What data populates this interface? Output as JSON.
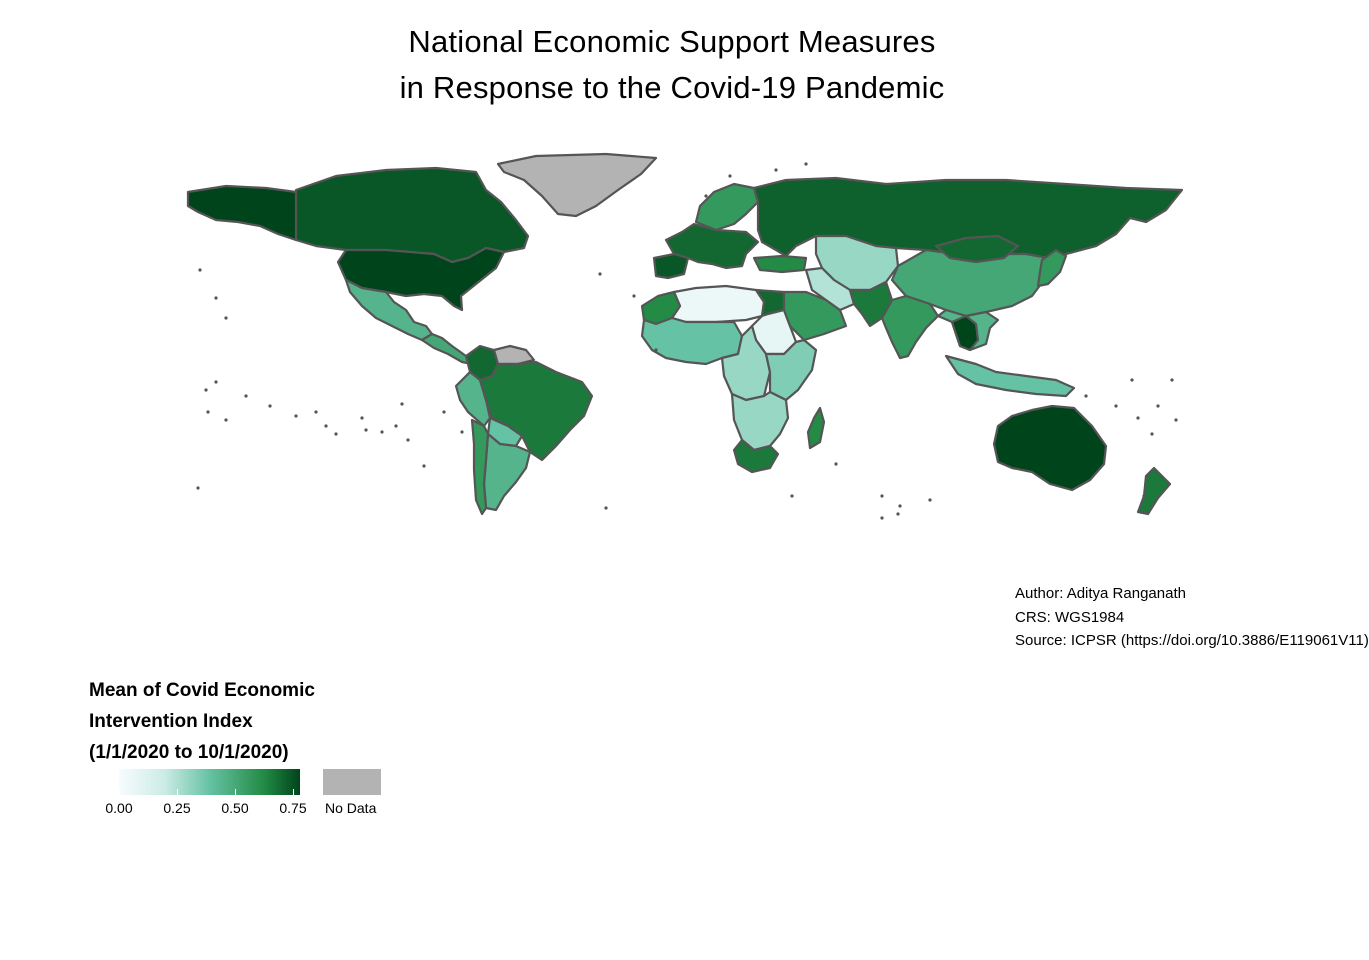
{
  "title": {
    "line1": "National Economic Support Measures",
    "line2": "in Response to the Covid-19 Pandemic"
  },
  "credits": {
    "author": "Author: Aditya Ranganath",
    "crs": "CRS: WGS1984",
    "source": "Source: ICPSR (https://doi.org/10.3886/E119061V11)"
  },
  "legend": {
    "title_line1": "Mean of Covid Economic",
    "title_line2": "Intervention Index",
    "title_line3": "(1/1/2020 to 10/1/2020)",
    "ticks": [
      "0.00",
      "0.25",
      "0.50",
      "0.75"
    ],
    "nodata_label": "No Data",
    "colors": {
      "low": "#f7fcfd",
      "mid": "#66c2a4",
      "high": "#00441b",
      "nodata": "#b3b3b3",
      "border": "#555555"
    }
  },
  "map_data": {
    "projection": "WGS1984",
    "scale_range": [
      0,
      0.8
    ],
    "regions": [
      {
        "name": "Canada",
        "value": 0.75
      },
      {
        "name": "United States",
        "value": 0.8
      },
      {
        "name": "Alaska",
        "value": 0.8
      },
      {
        "name": "Greenland",
        "value": null
      },
      {
        "name": "Mexico",
        "value": 0.45
      },
      {
        "name": "Central America",
        "value": 0.5
      },
      {
        "name": "Colombia",
        "value": 0.7
      },
      {
        "name": "Venezuela",
        "value": null
      },
      {
        "name": "Peru",
        "value": 0.45
      },
      {
        "name": "Brazil",
        "value": 0.65
      },
      {
        "name": "Bolivia",
        "value": 0.4
      },
      {
        "name": "Argentina",
        "value": 0.45
      },
      {
        "name": "Chile",
        "value": 0.55
      },
      {
        "name": "Western Europe",
        "value": 0.7
      },
      {
        "name": "Iberia",
        "value": 0.75
      },
      {
        "name": "Scandinavia",
        "value": 0.55
      },
      {
        "name": "Russia",
        "value": 0.72
      },
      {
        "name": "Central Asia",
        "value": 0.3
      },
      {
        "name": "China",
        "value": 0.5
      },
      {
        "name": "Mongolia",
        "value": 0.7
      },
      {
        "name": "India",
        "value": 0.55
      },
      {
        "name": "Southeast Asia",
        "value": 0.45
      },
      {
        "name": "Thailand",
        "value": 0.8
      },
      {
        "name": "Japan",
        "value": 0.55
      },
      {
        "name": "Indonesia",
        "value": 0.4
      },
      {
        "name": "Australia",
        "value": 0.8
      },
      {
        "name": "New Zealand",
        "value": 0.65
      },
      {
        "name": "North Africa",
        "value": 0.05
      },
      {
        "name": "Morocco",
        "value": 0.6
      },
      {
        "name": "Egypt",
        "value": 0.7
      },
      {
        "name": "Sudan",
        "value": 0.08
      },
      {
        "name": "West Africa",
        "value": 0.4
      },
      {
        "name": "Central Africa",
        "value": 0.3
      },
      {
        "name": "East Africa",
        "value": 0.35
      },
      {
        "name": "Southern Africa",
        "value": 0.3
      },
      {
        "name": "South Africa",
        "value": 0.65
      },
      {
        "name": "Madagascar",
        "value": 0.6
      },
      {
        "name": "Arabian Peninsula",
        "value": 0.55
      },
      {
        "name": "Iran",
        "value": 0.25
      },
      {
        "name": "Pakistan",
        "value": 0.65
      },
      {
        "name": "Turkey",
        "value": 0.6
      }
    ]
  }
}
